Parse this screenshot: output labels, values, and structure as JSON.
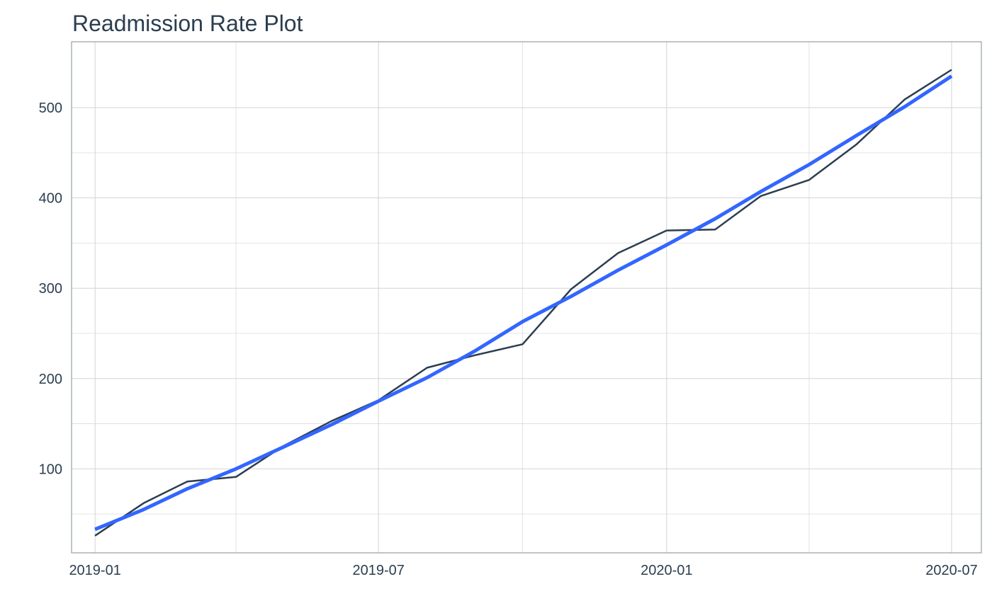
{
  "chart_data": {
    "type": "line",
    "title": "Readmission Rate Plot",
    "xlabel": "",
    "ylabel": "",
    "xlim": [
      "2018-12-17",
      "2020-07-20"
    ],
    "ylim": [
      7,
      573
    ],
    "x_ticks": [
      {
        "date": "2019-01-01",
        "label": "2019-01"
      },
      {
        "date": "2019-07-01",
        "label": "2019-07"
      },
      {
        "date": "2020-01-01",
        "label": "2020-01"
      },
      {
        "date": "2020-07-01",
        "label": "2020-07"
      }
    ],
    "x_minor_ticks": [
      "2019-04-01",
      "2019-10-01",
      "2020-04-01"
    ],
    "y_ticks": [
      100,
      200,
      300,
      400,
      500
    ],
    "y_minor_ticks": [
      50,
      150,
      250,
      350,
      450
    ],
    "grid": true,
    "series": [
      {
        "color": "#2c3e50",
        "points": [
          {
            "x": "2019-01-01",
            "y": 26
          },
          {
            "x": "2019-02-01",
            "y": 62
          },
          {
            "x": "2019-03-01",
            "y": 86
          },
          {
            "x": "2019-04-01",
            "y": 91
          },
          {
            "x": "2019-05-01",
            "y": 125
          },
          {
            "x": "2019-06-01",
            "y": 153
          },
          {
            "x": "2019-07-01",
            "y": 176
          },
          {
            "x": "2019-08-01",
            "y": 212
          },
          {
            "x": "2019-09-01",
            "y": 226
          },
          {
            "x": "2019-10-01",
            "y": 238
          },
          {
            "x": "2019-11-01",
            "y": 299
          },
          {
            "x": "2019-12-01",
            "y": 339
          },
          {
            "x": "2020-01-01",
            "y": 364
          },
          {
            "x": "2020-02-01",
            "y": 365
          },
          {
            "x": "2020-03-01",
            "y": 402
          },
          {
            "x": "2020-04-01",
            "y": 420
          },
          {
            "x": "2020-05-01",
            "y": 459
          },
          {
            "x": "2020-06-01",
            "y": 509
          },
          {
            "x": "2020-07-01",
            "y": 542
          }
        ]
      },
      {
        "color": "#3366ff",
        "points": [
          {
            "x": "2019-01-01",
            "y": 33
          },
          {
            "x": "2019-02-01",
            "y": 55
          },
          {
            "x": "2019-03-01",
            "y": 78
          },
          {
            "x": "2019-04-01",
            "y": 100
          },
          {
            "x": "2019-05-01",
            "y": 124
          },
          {
            "x": "2019-06-01",
            "y": 149
          },
          {
            "x": "2019-07-01",
            "y": 175
          },
          {
            "x": "2019-08-01",
            "y": 201
          },
          {
            "x": "2019-09-01",
            "y": 231
          },
          {
            "x": "2019-10-01",
            "y": 263
          },
          {
            "x": "2019-11-01",
            "y": 291
          },
          {
            "x": "2019-12-01",
            "y": 320
          },
          {
            "x": "2020-01-01",
            "y": 348
          },
          {
            "x": "2020-02-01",
            "y": 377
          },
          {
            "x": "2020-03-01",
            "y": 407
          },
          {
            "x": "2020-04-01",
            "y": 437
          },
          {
            "x": "2020-05-01",
            "y": 469
          },
          {
            "x": "2020-06-01",
            "y": 501
          },
          {
            "x": "2020-07-01",
            "y": 535
          }
        ]
      }
    ]
  }
}
